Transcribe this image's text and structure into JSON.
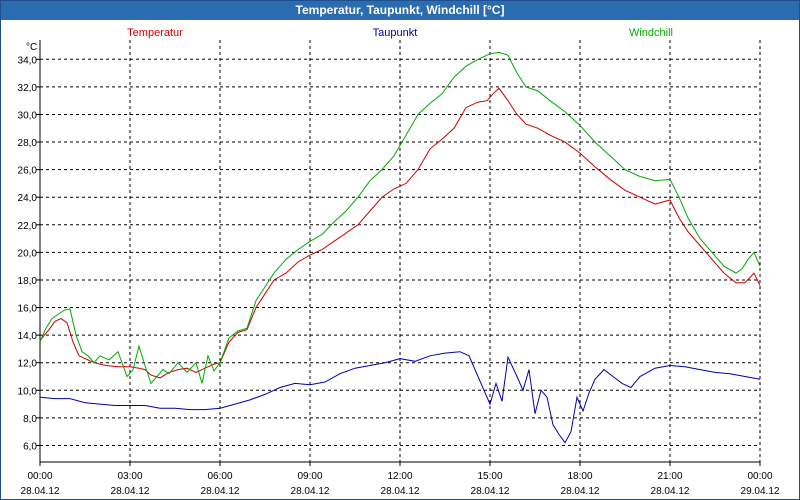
{
  "window": {
    "title": "Temperatur, Taupunkt, Windchill [°C]"
  },
  "chart_data": {
    "type": "line",
    "title": "Temperatur, Taupunkt, Windchill [°C]",
    "ylabel": "°C",
    "ylim": [
      4.8,
      35.4
    ],
    "yticks": [
      6,
      8,
      10,
      12,
      14,
      16,
      18,
      20,
      22,
      24,
      26,
      28,
      30,
      32,
      34
    ],
    "ytick_labels": [
      "6,0",
      "8,0",
      "10,0",
      "12,0",
      "14,0",
      "16,0",
      "18,0",
      "20,0",
      "22,0",
      "24,0",
      "26,0",
      "28,0",
      "30,0",
      "32,0",
      "34,0"
    ],
    "xlim": [
      0,
      24
    ],
    "xticks": [
      0,
      3,
      6,
      9,
      12,
      15,
      18,
      21,
      24
    ],
    "xtick_times": [
      "00:00",
      "03:00",
      "06:00",
      "09:00",
      "12:00",
      "15:00",
      "18:00",
      "21:00",
      "00:00"
    ],
    "xtick_dates": [
      "28.04.12",
      "28.04.12",
      "28.04.12",
      "28.04.12",
      "28.04.12",
      "28.04.12",
      "28.04.12",
      "28.04.12",
      "29.04.12"
    ],
    "grid": true,
    "legend": [
      "Temperatur",
      "Taupunkt",
      "Windchill"
    ],
    "series": [
      {
        "name": "Temperatur",
        "color": "#cc0000",
        "x": [
          0,
          0.3,
          0.5,
          0.7,
          0.9,
          1.1,
          1.3,
          1.5,
          1.8,
          2.2,
          2.6,
          3.0,
          3.3,
          3.5,
          3.7,
          4.0,
          4.3,
          4.6,
          4.9,
          5.2,
          5.5,
          5.8,
          6.0,
          6.3,
          6.6,
          6.9,
          7.2,
          7.5,
          7.8,
          8.2,
          8.6,
          9.0,
          9.4,
          9.8,
          10.2,
          10.6,
          11.0,
          11.4,
          11.8,
          12.2,
          12.6,
          13.0,
          13.4,
          13.8,
          14.2,
          14.6,
          14.9,
          15.1,
          15.3,
          15.6,
          15.9,
          16.2,
          16.6,
          17.0,
          17.5,
          18.0,
          18.5,
          19.0,
          19.5,
          20.0,
          20.5,
          21.0,
          21.3,
          21.6,
          22.0,
          22.4,
          22.8,
          23.2,
          23.5,
          23.8,
          24.0
        ],
        "values": [
          13.6,
          14.4,
          15.0,
          15.2,
          14.9,
          13.5,
          12.5,
          12.3,
          12.0,
          11.8,
          11.7,
          11.7,
          11.6,
          11.5,
          11.1,
          10.9,
          11.3,
          11.5,
          11.6,
          11.3,
          11.6,
          11.9,
          12.0,
          13.5,
          14.2,
          14.4,
          16.0,
          17.0,
          18.0,
          18.5,
          19.3,
          19.8,
          20.2,
          20.8,
          21.4,
          22.0,
          23.0,
          24.0,
          24.6,
          25.0,
          26.0,
          27.5,
          28.2,
          29.0,
          30.5,
          30.9,
          31.0,
          31.5,
          31.9,
          31.0,
          30.0,
          29.3,
          29.0,
          28.5,
          28.0,
          27.2,
          26.2,
          25.3,
          24.5,
          24.0,
          23.5,
          23.8,
          22.5,
          21.5,
          20.5,
          19.5,
          18.5,
          17.8,
          17.8,
          18.5,
          17.6
        ]
      },
      {
        "name": "Taupunkt",
        "color": "#0000aa",
        "x": [
          0,
          0.5,
          1.0,
          1.5,
          2.0,
          2.5,
          3.0,
          3.5,
          4.0,
          4.5,
          5.0,
          5.5,
          6.0,
          6.5,
          7.0,
          7.5,
          8.0,
          8.5,
          9.0,
          9.5,
          10.0,
          10.5,
          11.0,
          11.5,
          12.0,
          12.5,
          13.0,
          13.5,
          14.0,
          14.3,
          14.6,
          14.8,
          15.0,
          15.2,
          15.4,
          15.6,
          15.9,
          16.1,
          16.3,
          16.5,
          16.7,
          16.9,
          17.1,
          17.3,
          17.5,
          17.7,
          17.9,
          18.1,
          18.3,
          18.5,
          18.8,
          19.1,
          19.4,
          19.7,
          20.0,
          20.5,
          21.0,
          21.5,
          22.0,
          22.5,
          23.0,
          23.5,
          24.0
        ],
        "values": [
          9.5,
          9.4,
          9.4,
          9.1,
          9.0,
          8.9,
          8.9,
          8.9,
          8.7,
          8.7,
          8.6,
          8.6,
          8.7,
          9.0,
          9.3,
          9.7,
          10.2,
          10.5,
          10.4,
          10.6,
          11.2,
          11.6,
          11.8,
          12.0,
          12.3,
          12.1,
          12.5,
          12.7,
          12.8,
          12.5,
          11.0,
          10.0,
          9.0,
          10.5,
          9.2,
          12.4,
          11.0,
          10.0,
          11.5,
          8.3,
          10.0,
          9.5,
          7.5,
          6.8,
          6.2,
          7.0,
          9.5,
          8.5,
          9.8,
          10.8,
          11.5,
          11.0,
          10.5,
          10.2,
          11.0,
          11.6,
          11.8,
          11.7,
          11.5,
          11.3,
          11.2,
          11.0,
          10.8
        ]
      },
      {
        "name": "Windchill",
        "color": "#00aa00",
        "x": [
          0,
          0.2,
          0.4,
          0.6,
          0.8,
          1.0,
          1.2,
          1.4,
          1.6,
          1.8,
          2.0,
          2.3,
          2.6,
          2.9,
          3.1,
          3.3,
          3.5,
          3.7,
          3.9,
          4.1,
          4.3,
          4.6,
          4.9,
          5.2,
          5.4,
          5.6,
          5.8,
          6.0,
          6.3,
          6.6,
          6.9,
          7.2,
          7.5,
          7.8,
          8.2,
          8.6,
          9.0,
          9.4,
          9.8,
          10.2,
          10.6,
          11.0,
          11.4,
          11.8,
          12.2,
          12.6,
          13.0,
          13.4,
          13.8,
          14.2,
          14.6,
          15.0,
          15.3,
          15.6,
          15.9,
          16.2,
          16.6,
          17.0,
          17.5,
          18.0,
          18.5,
          19.0,
          19.5,
          20.0,
          20.5,
          21.0,
          21.3,
          21.6,
          22.0,
          22.4,
          22.8,
          23.2,
          23.4,
          23.6,
          23.8,
          24.0
        ],
        "values": [
          13.5,
          14.5,
          15.2,
          15.5,
          15.8,
          15.9,
          14.0,
          12.8,
          12.5,
          12.0,
          12.5,
          12.2,
          12.8,
          11.0,
          11.5,
          13.2,
          11.8,
          10.5,
          11.0,
          11.5,
          11.2,
          12.0,
          11.3,
          12.0,
          10.5,
          12.5,
          11.4,
          12.0,
          13.8,
          14.3,
          14.5,
          16.5,
          17.5,
          18.5,
          19.5,
          20.2,
          20.8,
          21.3,
          22.2,
          23.0,
          24.0,
          25.2,
          26.0,
          27.0,
          28.5,
          30.0,
          30.8,
          31.5,
          32.7,
          33.5,
          34.0,
          34.4,
          34.5,
          34.3,
          33.0,
          32.0,
          31.7,
          31.0,
          30.2,
          29.2,
          28.0,
          27.0,
          26.0,
          25.5,
          25.2,
          25.3,
          24.0,
          22.5,
          21.0,
          20.0,
          19.0,
          18.5,
          18.8,
          19.5,
          20.0,
          19.0
        ]
      }
    ]
  }
}
